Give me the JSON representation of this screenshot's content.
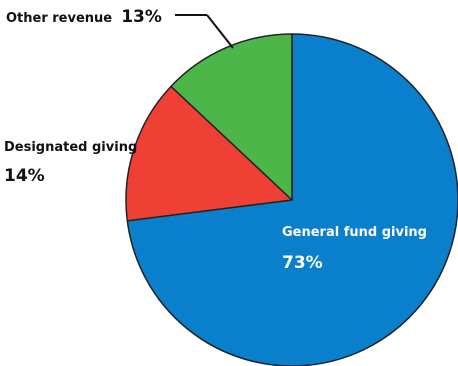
{
  "chart_data": {
    "type": "pie",
    "slices": [
      {
        "label": "General fund giving",
        "value": 73,
        "value_label": "73%",
        "color": "#0a7fcc"
      },
      {
        "label": "Designated giving",
        "value": 14,
        "value_label": "14%",
        "color": "#ee4035"
      },
      {
        "label": "Other revenue",
        "value": 13,
        "value_label": "13%",
        "color": "#4cb748"
      }
    ],
    "title": "",
    "legend": "none"
  }
}
